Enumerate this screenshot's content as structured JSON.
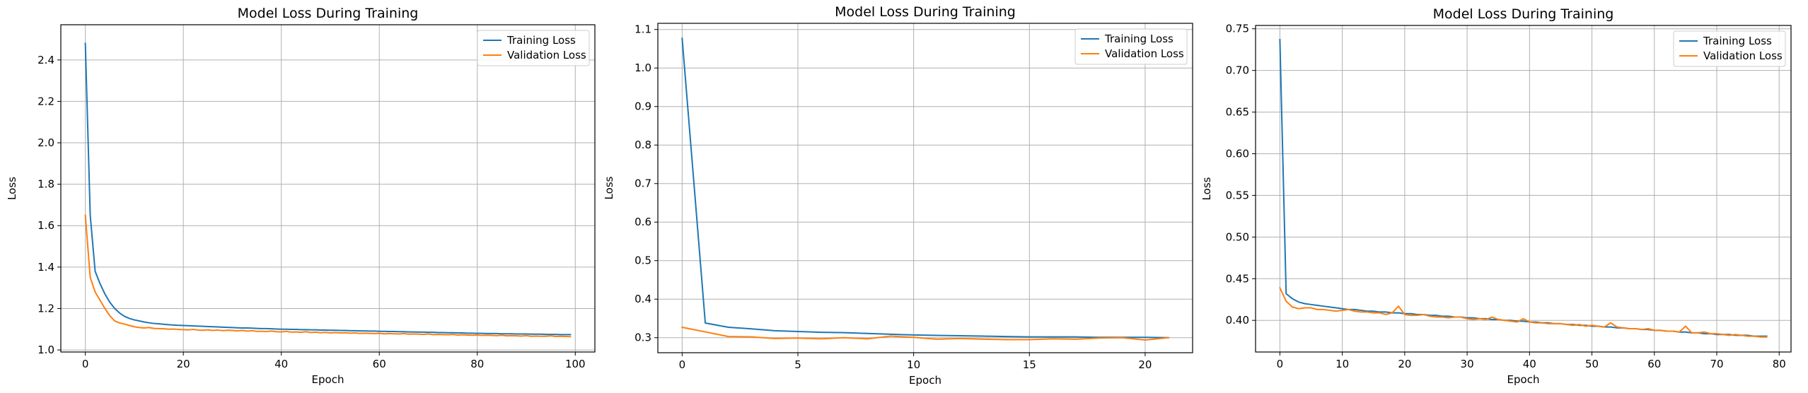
{
  "figure": {
    "background": "#ffffff",
    "colors": {
      "training": "#1f77b4",
      "validation": "#ff7f0e",
      "grid": "#b0b0b0"
    }
  },
  "chart_data": [
    {
      "type": "line",
      "title": "Model Loss During Training",
      "xlabel": "Epoch",
      "ylabel": "Loss",
      "xlim": [
        -5,
        104
      ],
      "ylim": [
        0.99,
        2.57
      ],
      "xticks": [
        0,
        20,
        40,
        60,
        80,
        100
      ],
      "yticks": [
        1.0,
        1.2,
        1.4,
        1.6,
        1.8,
        2.0,
        2.2,
        2.4
      ],
      "xtick_labels": [
        "0",
        "20",
        "40",
        "60",
        "80",
        "100"
      ],
      "ytick_labels": [
        "1.0",
        "1.2",
        "1.4",
        "1.6",
        "1.8",
        "2.0",
        "2.2",
        "2.4"
      ],
      "grid": true,
      "legend": "upper right",
      "series": [
        {
          "name": "Training Loss",
          "color": "#1f77b4",
          "x": [
            0,
            1,
            2,
            3,
            4,
            5,
            6,
            7,
            8,
            9,
            10,
            11,
            12,
            13,
            14,
            15,
            16,
            17,
            18,
            19,
            20,
            21,
            22,
            23,
            24,
            25,
            26,
            27,
            28,
            29,
            30,
            31,
            32,
            33,
            34,
            35,
            36,
            37,
            38,
            39,
            40,
            41,
            42,
            43,
            44,
            45,
            46,
            47,
            48,
            49,
            50,
            51,
            52,
            53,
            54,
            55,
            56,
            57,
            58,
            59,
            60,
            61,
            62,
            63,
            64,
            65,
            66,
            67,
            68,
            69,
            70,
            71,
            72,
            73,
            74,
            75,
            76,
            77,
            78,
            79,
            80,
            81,
            82,
            83,
            84,
            85,
            86,
            87,
            88,
            89,
            90,
            91,
            92,
            93,
            94,
            95,
            96,
            97,
            98,
            99
          ],
          "y": [
            2.48,
            1.65,
            1.38,
            1.32,
            1.27,
            1.23,
            1.2,
            1.178,
            1.162,
            1.152,
            1.145,
            1.14,
            1.135,
            1.131,
            1.128,
            1.126,
            1.124,
            1.122,
            1.12,
            1.119,
            1.118,
            1.117,
            1.116,
            1.115,
            1.114,
            1.113,
            1.112,
            1.111,
            1.11,
            1.109,
            1.108,
            1.107,
            1.106,
            1.106,
            1.105,
            1.104,
            1.103,
            1.103,
            1.102,
            1.101,
            1.1,
            1.1,
            1.099,
            1.099,
            1.098,
            1.098,
            1.097,
            1.097,
            1.096,
            1.096,
            1.095,
            1.095,
            1.094,
            1.094,
            1.093,
            1.093,
            1.092,
            1.092,
            1.091,
            1.091,
            1.09,
            1.09,
            1.089,
            1.089,
            1.088,
            1.088,
            1.087,
            1.087,
            1.086,
            1.086,
            1.085,
            1.085,
            1.084,
            1.084,
            1.083,
            1.083,
            1.082,
            1.082,
            1.081,
            1.081,
            1.08,
            1.08,
            1.079,
            1.079,
            1.079,
            1.078,
            1.078,
            1.078,
            1.077,
            1.077,
            1.077,
            1.076,
            1.076,
            1.076,
            1.075,
            1.075,
            1.075,
            1.074,
            1.074,
            1.074
          ]
        },
        {
          "name": "Validation Loss",
          "color": "#ff7f0e",
          "x": [
            0,
            1,
            2,
            3,
            4,
            5,
            6,
            7,
            8,
            9,
            10,
            11,
            12,
            13,
            14,
            15,
            16,
            17,
            18,
            19,
            20,
            21,
            22,
            23,
            24,
            25,
            26,
            27,
            28,
            29,
            30,
            31,
            32,
            33,
            34,
            35,
            36,
            37,
            38,
            39,
            40,
            41,
            42,
            43,
            44,
            45,
            46,
            47,
            48,
            49,
            50,
            51,
            52,
            53,
            54,
            55,
            56,
            57,
            58,
            59,
            60,
            61,
            62,
            63,
            64,
            65,
            66,
            67,
            68,
            69,
            70,
            71,
            72,
            73,
            74,
            75,
            76,
            77,
            78,
            79,
            80,
            81,
            82,
            83,
            84,
            85,
            86,
            87,
            88,
            89,
            90,
            91,
            92,
            93,
            94,
            95,
            96,
            97,
            98,
            99
          ],
          "y": [
            1.65,
            1.35,
            1.28,
            1.24,
            1.2,
            1.165,
            1.14,
            1.13,
            1.125,
            1.118,
            1.112,
            1.108,
            1.106,
            1.108,
            1.104,
            1.103,
            1.102,
            1.1,
            1.101,
            1.099,
            1.098,
            1.097,
            1.099,
            1.096,
            1.095,
            1.097,
            1.094,
            1.096,
            1.093,
            1.095,
            1.094,
            1.092,
            1.094,
            1.091,
            1.093,
            1.09,
            1.09,
            1.089,
            1.091,
            1.088,
            1.087,
            1.09,
            1.086,
            1.087,
            1.085,
            1.088,
            1.084,
            1.086,
            1.083,
            1.085,
            1.082,
            1.084,
            1.082,
            1.083,
            1.081,
            1.082,
            1.08,
            1.081,
            1.08,
            1.079,
            1.08,
            1.078,
            1.079,
            1.078,
            1.077,
            1.079,
            1.076,
            1.077,
            1.076,
            1.075,
            1.077,
            1.074,
            1.075,
            1.074,
            1.073,
            1.075,
            1.072,
            1.073,
            1.072,
            1.071,
            1.072,
            1.07,
            1.071,
            1.07,
            1.069,
            1.071,
            1.068,
            1.069,
            1.068,
            1.067,
            1.069,
            1.066,
            1.067,
            1.066,
            1.066,
            1.068,
            1.065,
            1.066,
            1.065,
            1.064
          ]
        }
      ]
    },
    {
      "type": "line",
      "title": "Model Loss During Training",
      "xlabel": "Epoch",
      "ylabel": "Loss",
      "xlim": [
        -1.05,
        22.05
      ],
      "ylim": [
        0.261,
        1.116
      ],
      "xticks": [
        0,
        5,
        10,
        15,
        20
      ],
      "yticks": [
        0.3,
        0.4,
        0.5,
        0.6,
        0.7,
        0.8,
        0.9,
        1.0,
        1.1
      ],
      "xtick_labels": [
        "0",
        "5",
        "10",
        "15",
        "20"
      ],
      "ytick_labels": [
        "0.3",
        "0.4",
        "0.5",
        "0.6",
        "0.7",
        "0.8",
        "0.9",
        "1.0",
        "1.1"
      ],
      "grid": true,
      "legend": "upper right",
      "series": [
        {
          "name": "Training Loss",
          "color": "#1f77b4",
          "x": [
            0,
            1,
            2,
            3,
            4,
            5,
            6,
            7,
            8,
            9,
            10,
            11,
            12,
            13,
            14,
            15,
            16,
            17,
            18,
            19,
            20,
            21
          ],
          "y": [
            1.077,
            0.338,
            0.327,
            0.323,
            0.318,
            0.316,
            0.314,
            0.313,
            0.311,
            0.309,
            0.307,
            0.306,
            0.305,
            0.304,
            0.303,
            0.302,
            0.302,
            0.302,
            0.301,
            0.301,
            0.301,
            0.3
          ]
        },
        {
          "name": "Validation Loss",
          "color": "#ff7f0e",
          "x": [
            0,
            1,
            2,
            3,
            4,
            5,
            6,
            7,
            8,
            9,
            10,
            11,
            12,
            13,
            14,
            15,
            16,
            17,
            18,
            19,
            20,
            21
          ],
          "y": [
            0.327,
            0.315,
            0.303,
            0.302,
            0.298,
            0.299,
            0.297,
            0.3,
            0.297,
            0.304,
            0.301,
            0.296,
            0.298,
            0.296,
            0.295,
            0.295,
            0.297,
            0.296,
            0.299,
            0.3,
            0.294,
            0.3
          ]
        }
      ]
    },
    {
      "type": "line",
      "title": "Model Loss During Training",
      "xlabel": "Epoch",
      "ylabel": "Loss",
      "xlim": [
        -3.9,
        81.9
      ],
      "ylim": [
        0.362,
        0.754
      ],
      "xticks": [
        0,
        10,
        20,
        30,
        40,
        50,
        60,
        70,
        80
      ],
      "yticks": [
        0.4,
        0.45,
        0.5,
        0.55,
        0.6,
        0.65,
        0.7,
        0.75
      ],
      "xtick_labels": [
        "0",
        "10",
        "20",
        "30",
        "40",
        "50",
        "60",
        "70",
        "80"
      ],
      "ytick_labels": [
        "0.40",
        "0.45",
        "0.50",
        "0.55",
        "0.60",
        "0.65",
        "0.70",
        "0.75"
      ],
      "grid": true,
      "legend": "upper right",
      "series": [
        {
          "name": "Training Loss",
          "color": "#1f77b4",
          "x": [
            0,
            1,
            2,
            3,
            4,
            5,
            6,
            7,
            8,
            9,
            10,
            11,
            12,
            13,
            14,
            15,
            16,
            17,
            18,
            19,
            20,
            21,
            22,
            23,
            24,
            25,
            26,
            27,
            28,
            29,
            30,
            31,
            32,
            33,
            34,
            35,
            36,
            37,
            38,
            39,
            40,
            41,
            42,
            43,
            44,
            45,
            46,
            47,
            48,
            49,
            50,
            51,
            52,
            53,
            54,
            55,
            56,
            57,
            58,
            59,
            60,
            61,
            62,
            63,
            64,
            65,
            66,
            67,
            68,
            69,
            70,
            71,
            72,
            73,
            74,
            75,
            76,
            77,
            78
          ],
          "y": [
            0.737,
            0.432,
            0.426,
            0.422,
            0.42,
            0.419,
            0.418,
            0.417,
            0.416,
            0.415,
            0.414,
            0.413,
            0.413,
            0.412,
            0.411,
            0.411,
            0.41,
            0.41,
            0.409,
            0.409,
            0.408,
            0.408,
            0.407,
            0.407,
            0.406,
            0.406,
            0.405,
            0.405,
            0.404,
            0.404,
            0.403,
            0.403,
            0.402,
            0.402,
            0.401,
            0.401,
            0.4,
            0.4,
            0.399,
            0.399,
            0.398,
            0.398,
            0.397,
            0.397,
            0.396,
            0.396,
            0.395,
            0.395,
            0.394,
            0.394,
            0.393,
            0.393,
            0.392,
            0.392,
            0.391,
            0.391,
            0.39,
            0.39,
            0.389,
            0.389,
            0.388,
            0.388,
            0.387,
            0.387,
            0.386,
            0.386,
            0.385,
            0.385,
            0.384,
            0.384,
            0.383,
            0.383,
            0.383,
            0.382,
            0.382,
            0.382,
            0.381,
            0.381,
            0.381
          ]
        },
        {
          "name": "Validation Loss",
          "color": "#ff7f0e",
          "x": [
            0,
            1,
            2,
            3,
            4,
            5,
            6,
            7,
            8,
            9,
            10,
            11,
            12,
            13,
            14,
            15,
            16,
            17,
            18,
            19,
            20,
            21,
            22,
            23,
            24,
            25,
            26,
            27,
            28,
            29,
            30,
            31,
            32,
            33,
            34,
            35,
            36,
            37,
            38,
            39,
            40,
            41,
            42,
            43,
            44,
            45,
            46,
            47,
            48,
            49,
            50,
            51,
            52,
            53,
            54,
            55,
            56,
            57,
            58,
            59,
            60,
            61,
            62,
            63,
            64,
            65,
            66,
            67,
            68,
            69,
            70,
            71,
            72,
            73,
            74,
            75,
            76,
            77,
            78
          ],
          "y": [
            0.439,
            0.423,
            0.416,
            0.414,
            0.415,
            0.415,
            0.413,
            0.413,
            0.412,
            0.411,
            0.412,
            0.413,
            0.411,
            0.41,
            0.41,
            0.409,
            0.409,
            0.407,
            0.409,
            0.417,
            0.407,
            0.406,
            0.406,
            0.407,
            0.405,
            0.404,
            0.404,
            0.403,
            0.404,
            0.404,
            0.402,
            0.401,
            0.402,
            0.401,
            0.404,
            0.401,
            0.4,
            0.399,
            0.398,
            0.402,
            0.398,
            0.397,
            0.397,
            0.396,
            0.396,
            0.396,
            0.395,
            0.394,
            0.395,
            0.393,
            0.394,
            0.393,
            0.392,
            0.397,
            0.392,
            0.391,
            0.39,
            0.39,
            0.389,
            0.39,
            0.388,
            0.388,
            0.387,
            0.387,
            0.386,
            0.393,
            0.385,
            0.385,
            0.386,
            0.384,
            0.384,
            0.383,
            0.382,
            0.383,
            0.382,
            0.381,
            0.381,
            0.38,
            0.38
          ]
        }
      ]
    }
  ]
}
